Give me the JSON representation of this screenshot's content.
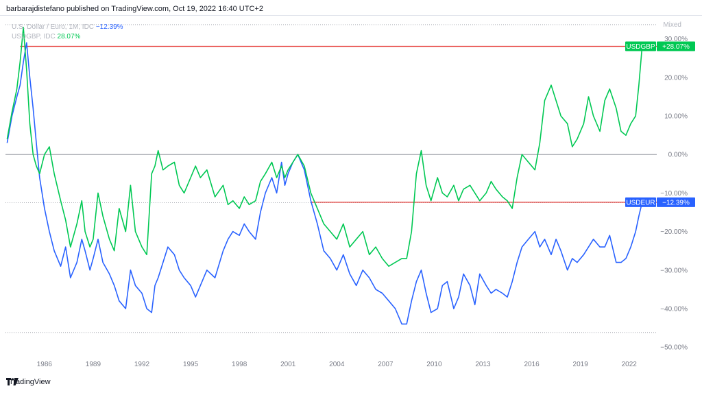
{
  "header": {
    "text": "barbarajdistefano published on TradingView.com, Oct 19, 2022 16:40 UTC+2"
  },
  "legend": {
    "line1_label": "U.S. Dollar / Euro, 1M, IDC",
    "line1_value": "−12.39%",
    "line2_label": "USDGBP, IDC",
    "line2_value": "28.07%"
  },
  "scale_mode": "Mixed",
  "footer": {
    "brand": "TradingView",
    "logo": "tv-logo-icon"
  },
  "colors": {
    "usdeur": "#2962ff",
    "usdgbp": "#00c853",
    "hline": "#e53935",
    "zero": "#9598a1",
    "dotted": "#9598a1"
  },
  "chart_data": {
    "type": "line",
    "title": "",
    "xlim": [
      1983.6,
      2023.7
    ],
    "ylim": [
      -53,
      36
    ],
    "x_ticks": [
      1986,
      1989,
      1992,
      1995,
      1998,
      2001,
      2004,
      2007,
      2010,
      2013,
      2016,
      2019,
      2022
    ],
    "y_ticks": [
      30,
      20,
      10,
      0,
      -10,
      -20,
      -30,
      -40,
      -50
    ],
    "y_tick_labels": [
      "30.00%",
      "20.00%",
      "10.00%",
      "0.00%",
      "−10.00%",
      "−20.00%",
      "−30.00%",
      "−40.00%",
      "−50.00%"
    ],
    "y_unit": "%",
    "grid": false,
    "zero_line": 0,
    "dotted_levels": [
      33.7,
      -12.5,
      -46.2
    ],
    "horizontal_lines": [
      {
        "value": 28.07,
        "x_start": 1984.5
      },
      {
        "value": -12.39,
        "x_start": 2002.4
      }
    ],
    "badges": [
      {
        "name": "USDGBP",
        "value": "+28.07%",
        "level": 28.07,
        "series": 1
      },
      {
        "name": "USDEUR",
        "value": "−12.39%",
        "level": -12.39,
        "series": 0
      }
    ],
    "series": [
      {
        "name": "USDEUR",
        "x": [
          1983.7,
          1984.0,
          1984.3,
          1984.5,
          1984.7,
          1984.9,
          1985.1,
          1985.3,
          1985.5,
          1985.7,
          1986.0,
          1986.3,
          1986.6,
          1987.0,
          1987.3,
          1987.6,
          1988.0,
          1988.3,
          1988.5,
          1988.8,
          1989.0,
          1989.3,
          1989.6,
          1990.0,
          1990.3,
          1990.6,
          1991.0,
          1991.3,
          1991.6,
          1992.0,
          1992.3,
          1992.6,
          1992.8,
          1993.0,
          1993.3,
          1993.6,
          1994.0,
          1994.3,
          1994.6,
          1995.0,
          1995.3,
          1995.6,
          1996.0,
          1996.5,
          1997.0,
          1997.3,
          1997.6,
          1998.0,
          1998.3,
          1998.6,
          1999.0,
          1999.3,
          1999.6,
          2000.0,
          2000.3,
          2000.6,
          2000.8,
          2001.0,
          2001.3,
          2001.6,
          2002.0,
          2002.4,
          2002.8,
          2003.2,
          2003.6,
          2004.0,
          2004.4,
          2004.8,
          2005.2,
          2005.6,
          2006.0,
          2006.4,
          2006.8,
          2007.2,
          2007.6,
          2008.0,
          2008.3,
          2008.6,
          2008.9,
          2009.2,
          2009.5,
          2009.8,
          2010.2,
          2010.5,
          2010.8,
          2011.2,
          2011.5,
          2011.8,
          2012.2,
          2012.5,
          2012.8,
          2013.2,
          2013.5,
          2013.8,
          2014.2,
          2014.5,
          2014.8,
          2015.1,
          2015.4,
          2015.8,
          2016.2,
          2016.5,
          2016.8,
          2017.2,
          2017.5,
          2017.8,
          2018.2,
          2018.5,
          2018.8,
          2019.2,
          2019.5,
          2019.8,
          2020.2,
          2020.5,
          2020.8,
          2021.2,
          2021.5,
          2021.8,
          2022.1,
          2022.4,
          2022.6,
          2022.8
        ],
        "y": [
          3,
          10,
          15,
          18,
          24,
          29,
          20,
          12,
          3,
          -6,
          -14,
          -20,
          -25,
          -29,
          -24,
          -32,
          -28,
          -22,
          -25,
          -30,
          -27,
          -22,
          -28,
          -31,
          -34,
          -38,
          -40,
          -30,
          -34,
          -36,
          -40,
          -41,
          -34,
          -32,
          -28,
          -24,
          -26,
          -30,
          -32,
          -34,
          -37,
          -34,
          -30,
          -32,
          -25,
          -22,
          -20,
          -21,
          -18,
          -20,
          -22,
          -15,
          -10,
          -6,
          -10,
          -2,
          -8,
          -5,
          -2,
          0,
          -4,
          -12,
          -18,
          -25,
          -27,
          -30,
          -26,
          -31,
          -34,
          -30,
          -32,
          -35,
          -36,
          -38,
          -40,
          -44,
          -44,
          -38,
          -33,
          -30,
          -36,
          -41,
          -40,
          -34,
          -33,
          -40,
          -37,
          -31,
          -34,
          -39,
          -31,
          -34,
          -36,
          -35,
          -36,
          -37,
          -33,
          -28,
          -24,
          -22,
          -20,
          -24,
          -22,
          -26,
          -22,
          -25,
          -30,
          -27,
          -28,
          -26,
          -24,
          -22,
          -24,
          -24,
          -21,
          -28,
          -28,
          -27,
          -24,
          -20,
          -16,
          -12.39
        ]
      },
      {
        "name": "USDGBP",
        "x": [
          1983.7,
          1984.0,
          1984.3,
          1984.5,
          1984.7,
          1984.9,
          1985.1,
          1985.3,
          1985.5,
          1985.7,
          1986.0,
          1986.3,
          1986.6,
          1987.0,
          1987.3,
          1987.6,
          1988.0,
          1988.3,
          1988.5,
          1988.8,
          1989.0,
          1989.3,
          1989.6,
          1990.0,
          1990.3,
          1990.6,
          1991.0,
          1991.3,
          1991.6,
          1992.0,
          1992.3,
          1992.6,
          1992.8,
          1993.0,
          1993.3,
          1993.6,
          1994.0,
          1994.3,
          1994.6,
          1995.0,
          1995.3,
          1995.6,
          1996.0,
          1996.5,
          1997.0,
          1997.3,
          1997.6,
          1998.0,
          1998.3,
          1998.6,
          1999.0,
          1999.3,
          1999.6,
          2000.0,
          2000.3,
          2000.6,
          2000.8,
          2001.0,
          2001.3,
          2001.6,
          2002.0,
          2002.4,
          2002.8,
          2003.2,
          2003.6,
          2004.0,
          2004.4,
          2004.8,
          2005.2,
          2005.6,
          2006.0,
          2006.4,
          2006.8,
          2007.2,
          2007.6,
          2008.0,
          2008.3,
          2008.6,
          2008.9,
          2009.2,
          2009.5,
          2009.8,
          2010.2,
          2010.5,
          2010.8,
          2011.2,
          2011.5,
          2011.8,
          2012.2,
          2012.5,
          2012.8,
          2013.2,
          2013.5,
          2013.8,
          2014.2,
          2014.5,
          2014.8,
          2015.1,
          2015.4,
          2015.8,
          2016.2,
          2016.5,
          2016.8,
          2017.2,
          2017.5,
          2017.8,
          2018.2,
          2018.5,
          2018.8,
          2019.2,
          2019.5,
          2019.8,
          2020.2,
          2020.5,
          2020.8,
          2021.2,
          2021.5,
          2021.8,
          2022.1,
          2022.4,
          2022.6,
          2022.8
        ],
        "y": [
          4,
          11,
          17,
          24,
          33,
          22,
          8,
          0,
          -3,
          -5,
          0,
          2,
          -5,
          -12,
          -17,
          -24,
          -18,
          -12,
          -20,
          -24,
          -22,
          -10,
          -16,
          -22,
          -25,
          -14,
          -20,
          -8,
          -20,
          -24,
          -26,
          -5,
          -3,
          1,
          -4,
          -3,
          -2,
          -8,
          -10,
          -6,
          -3,
          -6,
          -4,
          -11,
          -8,
          -13,
          -12,
          -14,
          -11,
          -13,
          -12,
          -7,
          -5,
          -2,
          -6,
          -3,
          -6,
          -4,
          -2,
          0,
          -3,
          -10,
          -14,
          -18,
          -20,
          -22,
          -18,
          -24,
          -22,
          -20,
          -26,
          -24,
          -27,
          -29,
          -28,
          -27,
          -27,
          -20,
          -5,
          1,
          -8,
          -12,
          -6,
          -10,
          -11,
          -8,
          -12,
          -9,
          -8,
          -10,
          -12,
          -10,
          -7,
          -9,
          -11,
          -12,
          -14,
          -6,
          0,
          -2,
          -4,
          3,
          14,
          18,
          14,
          10,
          8,
          2,
          4,
          8,
          15,
          10,
          6,
          14,
          17,
          12,
          6,
          5,
          8,
          10,
          18,
          28.07
        ]
      }
    ]
  }
}
